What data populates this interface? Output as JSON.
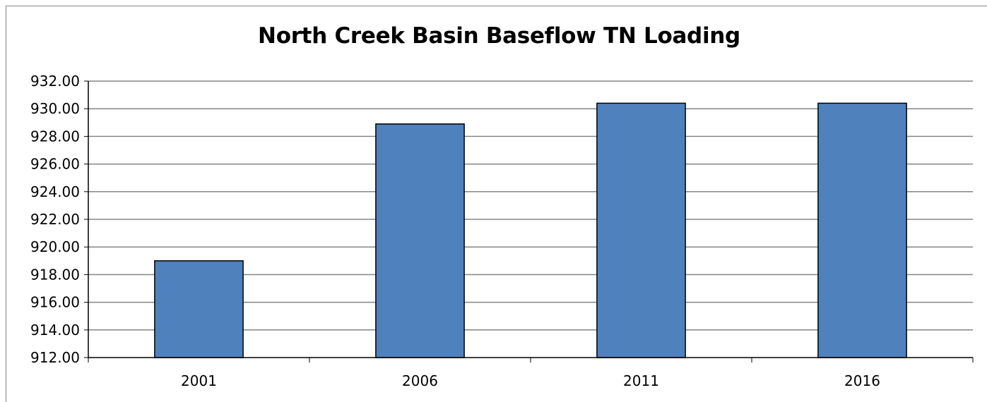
{
  "chart_data": {
    "type": "bar",
    "title": "North Creek Basin Baseflow TN Loading",
    "xlabel": "",
    "ylabel": "",
    "categories": [
      "2001",
      "2006",
      "2011",
      "2016"
    ],
    "values": [
      919.0,
      928.9,
      930.4,
      930.4
    ],
    "ylim": [
      912.0,
      932.0
    ],
    "ytick_step": 2.0,
    "ytick_labels": [
      "912.00",
      "914.00",
      "916.00",
      "918.00",
      "920.00",
      "922.00",
      "924.00",
      "926.00",
      "928.00",
      "930.00",
      "932.00"
    ],
    "grid": true,
    "legend": "none",
    "colors": {
      "bar_fill": "#4F81BD",
      "bar_stroke": "#000000",
      "grid": "#868686",
      "axis": "#000000"
    }
  }
}
